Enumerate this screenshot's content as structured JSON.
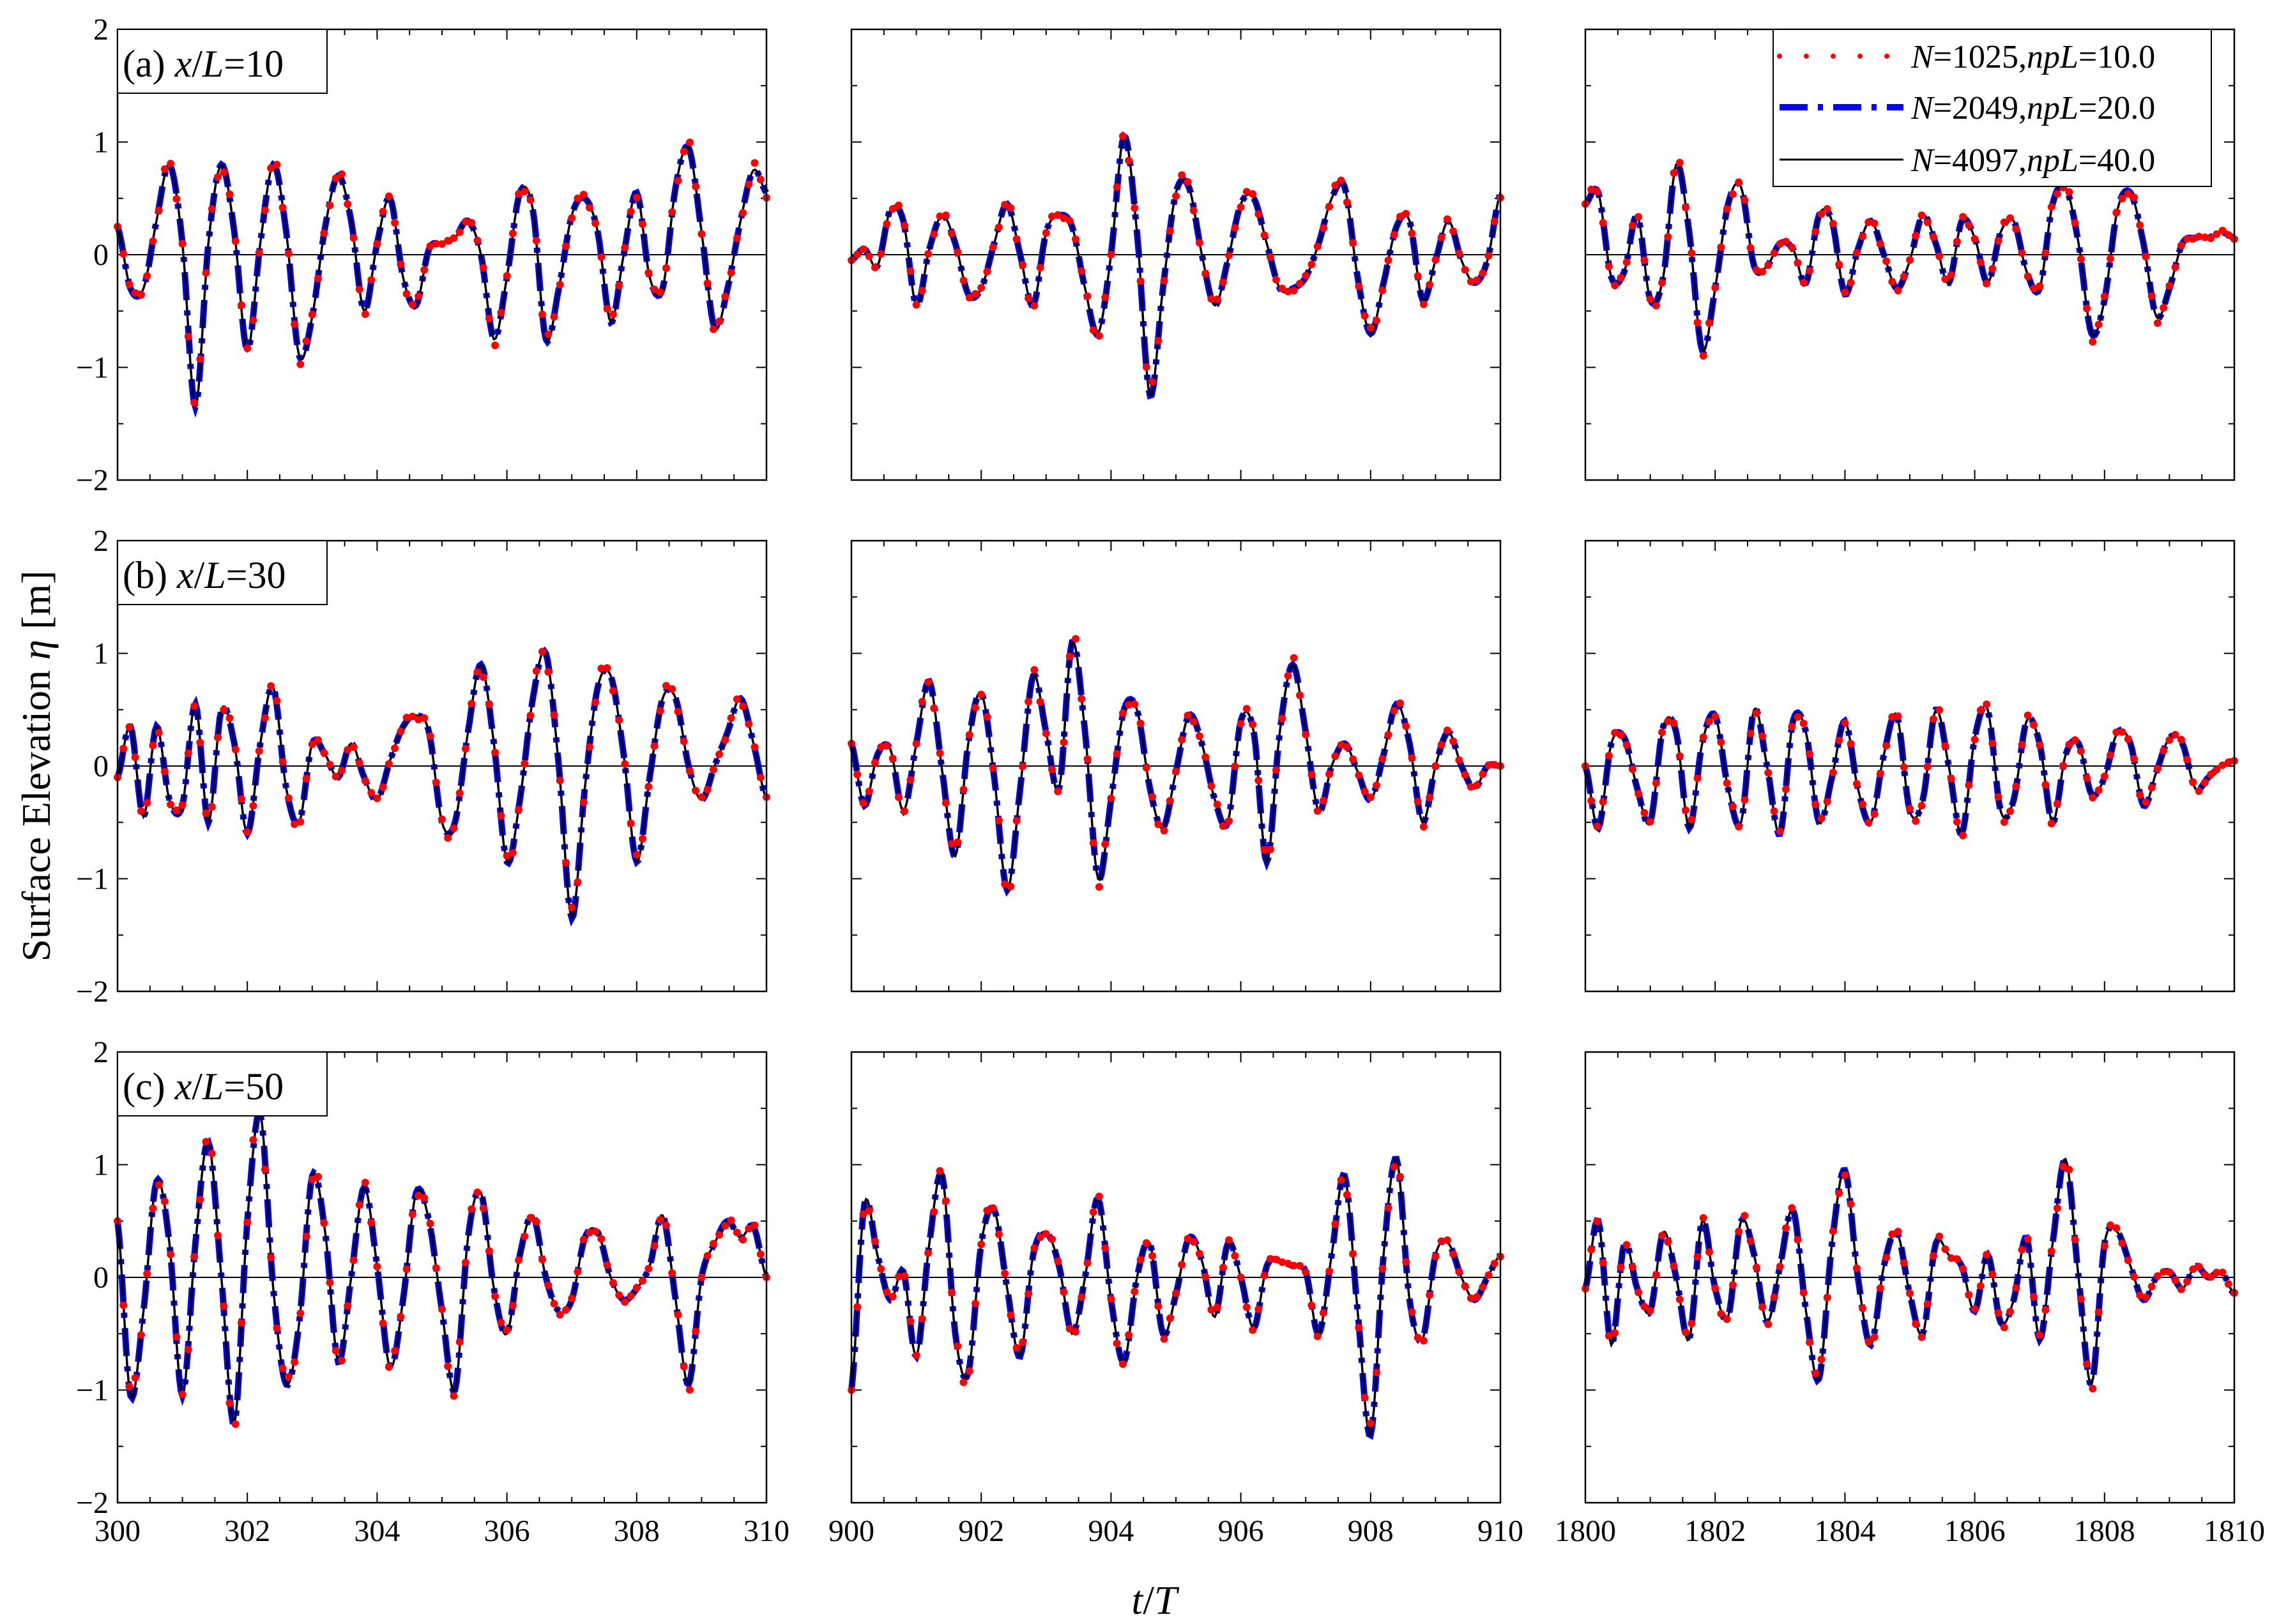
{
  "figure": {
    "ylabel_text": "Surface Elevation ",
    "ylabel_symbol": "η",
    "ylabel_unit": " [m]",
    "xlabel_t": "t",
    "xlabel_slash": "/",
    "xlabel_T": "T"
  },
  "chart_data": {
    "type": "line",
    "rows": [
      {
        "label_prefix": "(a) ",
        "label_x": "x",
        "label_slash": "/",
        "label_L": "L",
        "label_value": "=10"
      },
      {
        "label_prefix": "(b) ",
        "label_x": "x",
        "label_slash": "/",
        "label_L": "L",
        "label_value": "=30"
      },
      {
        "label_prefix": "(c) ",
        "label_x": "x",
        "label_slash": "/",
        "label_L": "L",
        "label_value": "=50"
      }
    ],
    "columns": [
      {
        "xlim": [
          300,
          310
        ],
        "xticks": [
          "300",
          "302",
          "304",
          "306",
          "308",
          "310"
        ]
      },
      {
        "xlim": [
          900,
          910
        ],
        "xticks": [
          "900",
          "902",
          "904",
          "906",
          "908",
          "910"
        ]
      },
      {
        "xlim": [
          1800,
          1810
        ],
        "xticks": [
          "1800",
          "1802",
          "1804",
          "1806",
          "1808",
          "1810"
        ]
      }
    ],
    "ylim": [
      -2,
      2
    ],
    "yticks": [
      "−2",
      "−1",
      "0",
      "1",
      "2"
    ],
    "legend_position": "top-right",
    "legend": [
      {
        "N": "N",
        "eqN": "=1025,",
        "npL": "npL",
        "eqnpL": "=10.0",
        "style": "dots",
        "color": "#ff0000"
      },
      {
        "N": "N",
        "eqN": "=2049,",
        "npL": "npL",
        "eqnpL": "=20.0",
        "style": "dash-dot",
        "color": "#0000ff"
      },
      {
        "N": "N",
        "eqN": "=4097,",
        "npL": "npL",
        "eqnpL": "=40.0",
        "style": "solid",
        "color": "#000000"
      }
    ],
    "panels": [
      [
        {
          "x": [
            300.0,
            300.2,
            300.4,
            300.6,
            300.8,
            301.0,
            301.2,
            301.4,
            301.6,
            301.8,
            302.0,
            302.2,
            302.4,
            302.6,
            302.8,
            303.0,
            303.2,
            303.4,
            303.6,
            303.8,
            304.0,
            304.2,
            304.4,
            304.6,
            304.8,
            305.0,
            305.2,
            305.4,
            305.6,
            305.8,
            306.0,
            306.2,
            306.4,
            306.6,
            306.8,
            307.0,
            307.2,
            307.4,
            307.6,
            307.8,
            308.0,
            308.2,
            308.4,
            308.6,
            308.8,
            309.0,
            309.2,
            309.4,
            309.6,
            309.8,
            310.0
          ],
          "y": [
            0.25,
            -0.3,
            -0.3,
            0.3,
            0.8,
            0.1,
            -1.35,
            0.1,
            0.8,
            0.2,
            -0.85,
            0.1,
            0.8,
            0.2,
            -0.9,
            -0.55,
            0.25,
            0.7,
            0.3,
            -0.5,
            0.1,
            0.5,
            -0.2,
            -0.45,
            0.05,
            0.1,
            0.15,
            0.3,
            0.0,
            -0.75,
            -0.2,
            0.55,
            0.4,
            -0.75,
            -0.3,
            0.35,
            0.5,
            0.2,
            -0.6,
            0.0,
            0.55,
            -0.2,
            -0.3,
            0.6,
            0.95,
            0.2,
            -0.65,
            -0.3,
            0.3,
            0.75,
            0.55
          ]
        },
        {
          "x": [
            900.0,
            900.2,
            900.4,
            900.6,
            900.8,
            901.0,
            901.2,
            901.4,
            901.6,
            901.8,
            902.0,
            902.2,
            902.4,
            902.6,
            902.8,
            903.0,
            903.2,
            903.4,
            903.6,
            903.8,
            904.0,
            904.2,
            904.4,
            904.6,
            904.8,
            905.0,
            905.2,
            905.4,
            905.6,
            905.8,
            906.0,
            906.2,
            906.4,
            906.6,
            906.8,
            907.0,
            907.2,
            907.4,
            907.6,
            907.8,
            908.0,
            908.2,
            908.4,
            908.6,
            908.8,
            909.0,
            909.2,
            909.4,
            909.6,
            909.8,
            910.0
          ],
          "y": [
            -0.05,
            0.05,
            -0.1,
            0.4,
            0.3,
            -0.45,
            0.05,
            0.35,
            0.1,
            -0.35,
            -0.3,
            0.1,
            0.45,
            0.0,
            -0.45,
            0.2,
            0.35,
            0.25,
            -0.3,
            -0.7,
            0.0,
            1.05,
            0.2,
            -1.25,
            -0.3,
            0.55,
            0.6,
            0.0,
            -0.45,
            -0.05,
            0.45,
            0.5,
            0.1,
            -0.3,
            -0.3,
            -0.2,
            0.1,
            0.5,
            0.6,
            -0.2,
            -0.7,
            -0.25,
            0.25,
            0.3,
            -0.4,
            -0.05,
            0.3,
            -0.05,
            -0.25,
            -0.05,
            0.55
          ]
        },
        {
          "x": [
            1800.0,
            1800.2,
            1800.4,
            1800.6,
            1800.8,
            1801.0,
            1801.2,
            1801.4,
            1801.6,
            1801.8,
            1802.0,
            1802.2,
            1802.4,
            1802.6,
            1802.8,
            1803.0,
            1803.2,
            1803.4,
            1803.6,
            1803.8,
            1804.0,
            1804.2,
            1804.4,
            1804.6,
            1804.8,
            1805.0,
            1805.2,
            1805.4,
            1805.6,
            1805.8,
            1806.0,
            1806.2,
            1806.4,
            1806.6,
            1806.8,
            1807.0,
            1807.2,
            1807.4,
            1807.6,
            1807.8,
            1808.0,
            1808.2,
            1808.4,
            1808.6,
            1808.8,
            1809.0,
            1809.2,
            1809.4,
            1809.6,
            1809.8,
            1810.0
          ],
          "y": [
            0.45,
            0.55,
            -0.2,
            -0.15,
            0.35,
            -0.4,
            -0.2,
            0.8,
            0.2,
            -0.85,
            -0.3,
            0.45,
            0.6,
            -0.1,
            -0.1,
            0.1,
            0.05,
            -0.25,
            0.35,
            0.3,
            -0.35,
            0.05,
            0.3,
            0.0,
            -0.3,
            -0.05,
            0.35,
            0.1,
            -0.25,
            0.3,
            0.15,
            -0.25,
            0.2,
            0.3,
            -0.15,
            -0.3,
            0.45,
            0.6,
            0.1,
            -0.7,
            -0.4,
            0.4,
            0.55,
            0.1,
            -0.55,
            -0.3,
            0.1,
            0.15,
            0.15,
            0.2,
            0.15
          ]
        }
      ],
      [
        {
          "x": [
            300.0,
            300.2,
            300.4,
            300.6,
            300.8,
            301.0,
            301.2,
            301.4,
            301.6,
            301.8,
            302.0,
            302.2,
            302.4,
            302.6,
            302.8,
            303.0,
            303.2,
            303.4,
            303.6,
            303.8,
            304.0,
            304.2,
            304.4,
            304.6,
            304.8,
            305.0,
            305.2,
            305.4,
            305.6,
            305.8,
            306.0,
            306.2,
            306.4,
            306.6,
            306.8,
            307.0,
            307.2,
            307.4,
            307.6,
            307.8,
            308.0,
            308.2,
            308.4,
            308.6,
            308.8,
            309.0,
            309.2,
            309.4,
            309.6,
            309.8,
            310.0
          ],
          "y": [
            -0.1,
            0.35,
            -0.45,
            0.35,
            -0.3,
            -0.35,
            0.55,
            -0.5,
            0.5,
            0.2,
            -0.6,
            0.2,
            0.7,
            -0.2,
            -0.5,
            0.2,
            0.1,
            -0.1,
            0.2,
            -0.1,
            -0.3,
            0.05,
            0.35,
            0.45,
            0.3,
            -0.5,
            -0.5,
            0.3,
            0.9,
            0.2,
            -0.85,
            -0.3,
            0.6,
            1.0,
            0.0,
            -1.35,
            -0.2,
            0.7,
            0.8,
            0.1,
            -0.85,
            -0.1,
            0.6,
            0.6,
            0.0,
            -0.3,
            0.0,
            0.3,
            0.6,
            0.2,
            -0.3
          ]
        },
        {
          "x": [
            900.0,
            900.2,
            900.4,
            900.6,
            900.8,
            901.0,
            901.2,
            901.4,
            901.6,
            901.8,
            902.0,
            902.2,
            902.4,
            902.6,
            902.8,
            903.0,
            903.2,
            903.4,
            903.6,
            903.8,
            904.0,
            904.2,
            904.4,
            904.6,
            904.8,
            905.0,
            905.2,
            905.4,
            905.6,
            905.8,
            906.0,
            906.2,
            906.4,
            906.6,
            906.8,
            907.0,
            907.2,
            907.4,
            907.6,
            907.8,
            908.0,
            908.2,
            908.4,
            908.6,
            908.8,
            909.0,
            909.2,
            909.4,
            909.6,
            909.8,
            910.0
          ],
          "y": [
            0.2,
            -0.35,
            0.1,
            0.15,
            -0.4,
            0.2,
            0.75,
            -0.05,
            -0.8,
            0.2,
            0.65,
            -0.1,
            -1.1,
            -0.2,
            0.8,
            0.3,
            -0.2,
            1.1,
            0.3,
            -1.0,
            -0.3,
            0.5,
            0.5,
            -0.2,
            -0.55,
            -0.05,
            0.45,
            0.2,
            -0.3,
            -0.5,
            0.4,
            0.3,
            -0.85,
            0.3,
            0.9,
            0.3,
            -0.4,
            0.0,
            0.2,
            -0.05,
            -0.3,
            0.1,
            0.55,
            0.2,
            -0.5,
            0.0,
            0.3,
            0.0,
            -0.2,
            0.0,
            0.0
          ]
        },
        {
          "x": [
            1800.0,
            1800.2,
            1800.4,
            1800.6,
            1800.8,
            1801.0,
            1801.2,
            1801.4,
            1801.6,
            1801.8,
            1802.0,
            1802.2,
            1802.4,
            1802.6,
            1802.8,
            1803.0,
            1803.2,
            1803.4,
            1803.6,
            1803.8,
            1804.0,
            1804.2,
            1804.4,
            1804.6,
            1804.8,
            1805.0,
            1805.2,
            1805.4,
            1805.6,
            1805.8,
            1806.0,
            1806.2,
            1806.4,
            1806.6,
            1806.8,
            1807.0,
            1807.2,
            1807.4,
            1807.6,
            1807.8,
            1808.0,
            1808.2,
            1808.4,
            1808.6,
            1808.8,
            1809.0,
            1809.2,
            1809.4,
            1809.6,
            1809.8,
            1810.0
          ],
          "y": [
            0.0,
            -0.55,
            0.2,
            0.25,
            -0.2,
            -0.5,
            0.35,
            0.3,
            -0.55,
            0.2,
            0.45,
            -0.2,
            -0.5,
            0.5,
            0.0,
            -0.6,
            0.4,
            0.3,
            -0.5,
            -0.1,
            0.4,
            -0.2,
            -0.5,
            0.1,
            0.45,
            -0.4,
            -0.3,
            0.5,
            0.0,
            -0.6,
            0.25,
            0.5,
            -0.4,
            -0.3,
            0.4,
            0.2,
            -0.5,
            0.1,
            0.2,
            -0.25,
            -0.1,
            0.3,
            0.2,
            -0.35,
            -0.05,
            0.25,
            0.2,
            -0.2,
            -0.1,
            0.0,
            0.05
          ]
        }
      ],
      [
        {
          "x": [
            300.0,
            300.2,
            300.4,
            300.6,
            300.8,
            301.0,
            301.2,
            301.4,
            301.6,
            301.8,
            302.0,
            302.2,
            302.4,
            302.6,
            302.8,
            303.0,
            303.2,
            303.4,
            303.6,
            303.8,
            304.0,
            304.2,
            304.4,
            304.6,
            304.8,
            305.0,
            305.2,
            305.4,
            305.6,
            305.8,
            306.0,
            306.2,
            306.4,
            306.6,
            306.8,
            307.0,
            307.2,
            307.4,
            307.6,
            307.8,
            308.0,
            308.2,
            308.4,
            308.6,
            308.8,
            309.0,
            309.2,
            309.4,
            309.6,
            309.8,
            310.0
          ],
          "y": [
            0.5,
            -1.05,
            -0.3,
            0.85,
            0.3,
            -1.05,
            0.3,
            1.2,
            0.0,
            -1.3,
            0.5,
            1.45,
            -0.1,
            -0.95,
            -0.4,
            0.9,
            0.4,
            -0.75,
            0.0,
            0.8,
            0.1,
            -0.8,
            -0.2,
            0.75,
            0.5,
            -0.3,
            -1.0,
            0.35,
            0.75,
            -0.1,
            -0.5,
            0.2,
            0.55,
            0.0,
            -0.3,
            -0.2,
            0.35,
            0.4,
            0.0,
            -0.2,
            -0.1,
            0.1,
            0.55,
            -0.2,
            -0.95,
            0.0,
            0.3,
            0.5,
            0.35,
            0.45,
            0.0
          ]
        },
        {
          "x": [
            900.0,
            900.2,
            900.4,
            900.6,
            900.8,
            901.0,
            901.2,
            901.4,
            901.6,
            901.8,
            902.0,
            902.2,
            902.4,
            902.6,
            902.8,
            903.0,
            903.2,
            903.4,
            903.6,
            903.8,
            904.0,
            904.2,
            904.4,
            904.6,
            904.8,
            905.0,
            905.2,
            905.4,
            905.6,
            905.8,
            906.0,
            906.2,
            906.4,
            906.6,
            906.8,
            907.0,
            907.2,
            907.4,
            907.6,
            907.8,
            908.0,
            908.2,
            908.4,
            908.6,
            908.8,
            909.0,
            909.2,
            909.4,
            909.6,
            909.8,
            910.0
          ],
          "y": [
            -1.0,
            0.65,
            0.2,
            -0.2,
            0.05,
            -0.7,
            0.3,
            0.9,
            -0.5,
            -0.85,
            0.3,
            0.6,
            -0.1,
            -0.7,
            0.2,
            0.4,
            0.1,
            -0.5,
            0.0,
            0.7,
            -0.2,
            -0.75,
            0.0,
            0.3,
            -0.5,
            -0.15,
            0.35,
            0.15,
            -0.35,
            0.3,
            0.0,
            -0.45,
            0.1,
            0.15,
            0.1,
            0.05,
            -0.5,
            0.2,
            0.9,
            -0.3,
            -1.4,
            0.2,
            1.05,
            -0.2,
            -0.55,
            0.2,
            0.3,
            0.0,
            -0.2,
            0.0,
            0.2
          ]
        },
        {
          "x": [
            1800.0,
            1800.2,
            1800.4,
            1800.6,
            1800.8,
            1801.0,
            1801.2,
            1801.4,
            1801.6,
            1801.8,
            1802.0,
            1802.2,
            1802.4,
            1802.6,
            1802.8,
            1803.0,
            1803.2,
            1803.4,
            1803.6,
            1803.8,
            1804.0,
            1804.2,
            1804.4,
            1804.6,
            1804.8,
            1805.0,
            1805.2,
            1805.4,
            1805.6,
            1805.8,
            1806.0,
            1806.2,
            1806.4,
            1806.6,
            1806.8,
            1807.0,
            1807.2,
            1807.4,
            1807.6,
            1807.8,
            1808.0,
            1808.2,
            1808.4,
            1808.6,
            1808.8,
            1809.0,
            1809.2,
            1809.4,
            1809.6,
            1809.8,
            1810.0
          ],
          "y": [
            -0.1,
            0.5,
            -0.6,
            0.3,
            -0.1,
            -0.3,
            0.4,
            0.0,
            -0.55,
            0.5,
            -0.1,
            -0.35,
            0.5,
            0.2,
            -0.4,
            0.1,
            0.6,
            -0.3,
            -0.9,
            0.3,
            0.95,
            0.0,
            -0.6,
            0.1,
            0.4,
            -0.15,
            -0.5,
            0.3,
            0.2,
            0.1,
            -0.3,
            0.2,
            -0.4,
            -0.2,
            0.35,
            -0.55,
            0.3,
            1.05,
            0.0,
            -0.95,
            0.3,
            0.4,
            0.1,
            -0.2,
            0.0,
            0.05,
            -0.1,
            0.1,
            0.0,
            0.05,
            -0.15
          ]
        }
      ]
    ]
  }
}
